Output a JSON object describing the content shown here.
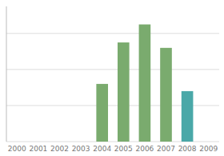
{
  "chart_data": {
    "type": "bar",
    "categories": [
      "2000",
      "2001",
      "2002",
      "2003",
      "2004",
      "2005",
      "2006",
      "2007",
      "2008",
      "2009"
    ],
    "values": [
      0,
      0,
      0,
      0,
      3.2,
      5.5,
      6.5,
      5.2,
      2.8,
      0
    ],
    "colors": [
      "#7aab6e",
      "#7aab6e",
      "#7aab6e",
      "#7aab6e",
      "#7aab6e",
      "#7aab6e",
      "#7aab6e",
      "#7aab6e",
      "#4aa8a8",
      "#7aab6e"
    ],
    "ylim": [
      0,
      7.5
    ],
    "yticks": [
      0,
      2,
      4,
      6
    ],
    "grid": true,
    "tick_labels": "x"
  }
}
